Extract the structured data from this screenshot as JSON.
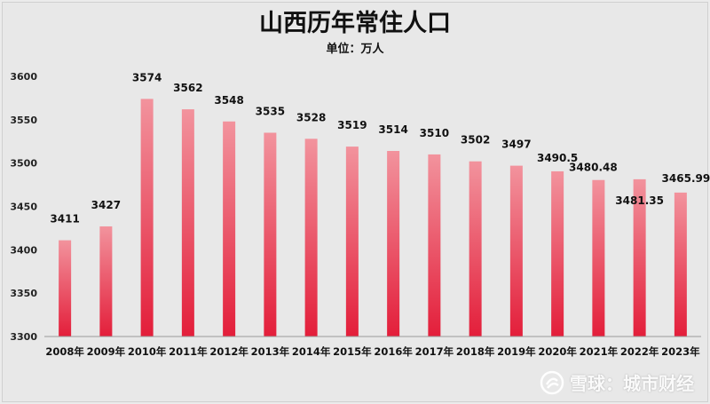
{
  "chart_data": {
    "type": "bar",
    "title": "山西历年常住人口",
    "subtitle": "单位：万人",
    "categories": [
      "2008年",
      "2009年",
      "2010年",
      "2011年",
      "2012年",
      "2013年",
      "2014年",
      "2015年",
      "2016年",
      "2017年",
      "2018年",
      "2019年",
      "2020年",
      "2021年",
      "2022年",
      "2023年"
    ],
    "values": [
      3411,
      3427,
      3574,
      3562,
      3548,
      3535,
      3528,
      3519,
      3514,
      3510,
      3502,
      3497,
      3490.5,
      3480.48,
      3481.35,
      3465.99
    ],
    "data_labels": [
      "3411",
      "3427",
      "3574",
      "3562",
      "3548",
      "3535",
      "3528",
      "3519",
      "3514",
      "3510",
      "3502",
      "3497",
      "3490.5",
      "3480.48",
      "3481.35",
      "3465.99"
    ],
    "ylim": [
      3300,
      3600
    ],
    "yticks": [
      "3300",
      "3350",
      "3400",
      "3450",
      "3500",
      "3550",
      "3600"
    ],
    "grid": false,
    "bar_color_top": "#f2939d",
    "bar_color_bottom": "#e31e3a"
  },
  "watermark": {
    "text": "雪球：城市财经",
    "icon": "snowball-logo-icon"
  }
}
